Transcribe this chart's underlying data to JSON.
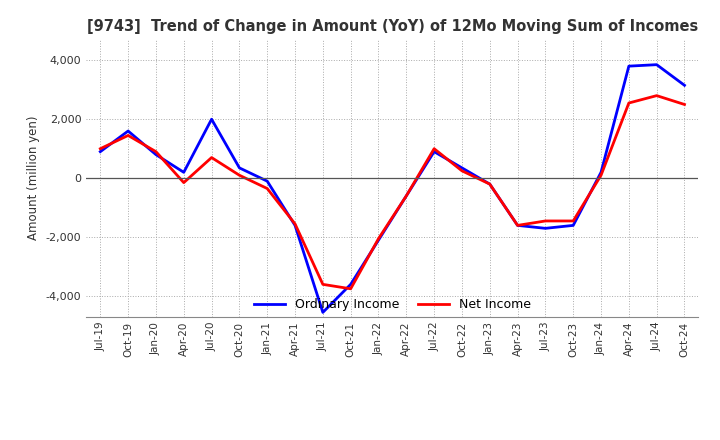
{
  "title": "[9743]  Trend of Change in Amount (YoY) of 12Mo Moving Sum of Incomes",
  "ylabel": "Amount (million yen)",
  "ylim": [
    -4700,
    4700
  ],
  "yticks": [
    -4000,
    -2000,
    0,
    2000,
    4000
  ],
  "x_labels": [
    "Jul-19",
    "Oct-19",
    "Jan-20",
    "Apr-20",
    "Jul-20",
    "Oct-20",
    "Jan-21",
    "Apr-21",
    "Jul-21",
    "Oct-21",
    "Jan-22",
    "Apr-22",
    "Jul-22",
    "Oct-22",
    "Jan-23",
    "Apr-23",
    "Jul-23",
    "Oct-23",
    "Jan-24",
    "Apr-24",
    "Jul-24",
    "Oct-24"
  ],
  "ordinary_income": [
    900,
    1600,
    800,
    200,
    2000,
    350,
    -100,
    -1600,
    -4550,
    -3600,
    -2100,
    -600,
    900,
    350,
    -200,
    -1600,
    -1700,
    -1600,
    200,
    3800,
    3850,
    3150
  ],
  "net_income": [
    1000,
    1450,
    900,
    -150,
    700,
    100,
    -350,
    -1550,
    -3600,
    -3750,
    -2050,
    -600,
    1000,
    250,
    -200,
    -1600,
    -1450,
    -1450,
    100,
    2550,
    2800,
    2500
  ],
  "ordinary_color": "#0000ff",
  "net_color": "#ff0000",
  "background_color": "#ffffff",
  "grid_color": "#aaaaaa",
  "title_color": "#333333",
  "legend_ordinary": "Ordinary Income",
  "legend_net": "Net Income"
}
